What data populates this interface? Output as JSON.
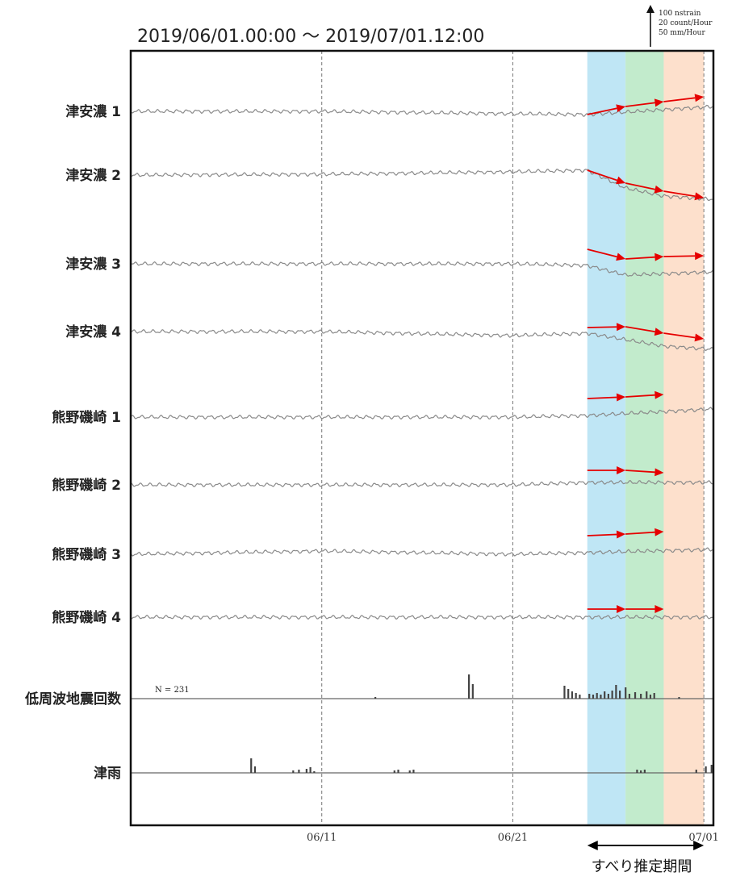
{
  "chart_data": {
    "type": "line",
    "title": "2019/06/01.00:00 ～ 2019/07/01.12:00",
    "x_range": [
      "2019-06-01 00:00",
      "2019-07-01 12:00"
    ],
    "x_tick_labels": [
      "06/11",
      "06/21",
      "07/01"
    ],
    "x_ticks_days": [
      10,
      20,
      30
    ],
    "x_range_days": [
      0,
      30.5
    ],
    "scale_legend": [
      "100 nstrain",
      "20 count/Hour",
      "50 mm/Hour"
    ],
    "count_annotation": "N =   231",
    "period_label": "すべり推定期間",
    "period_days": [
      23.9,
      30.0
    ],
    "shaded_periods": [
      {
        "start_day": 23.9,
        "end_day": 25.9,
        "color": "#bfe6f5"
      },
      {
        "start_day": 25.9,
        "end_day": 27.9,
        "color": "#c2ebcc"
      },
      {
        "start_day": 27.9,
        "end_day": 30.0,
        "color": "#fde0cc"
      }
    ],
    "series": [
      {
        "name": "津安濃 1",
        "kind": "strain",
        "trend_points": [
          [
            0,
            0
          ],
          [
            10,
            0
          ],
          [
            20,
            3
          ],
          [
            23.9,
            4
          ],
          [
            30.5,
            -6
          ]
        ],
        "arrows": [
          [
            [
              23.9,
              4
            ],
            [
              25.9,
              -6
            ]
          ],
          [
            [
              25.9,
              -6
            ],
            [
              27.9,
              -12
            ]
          ],
          [
            [
              27.9,
              -12
            ],
            [
              30,
              -18
            ]
          ]
        ]
      },
      {
        "name": "津安濃 2",
        "kind": "strain",
        "trend_points": [
          [
            0,
            0
          ],
          [
            10,
            -1
          ],
          [
            20,
            -4
          ],
          [
            23.9,
            -6
          ],
          [
            25.9,
            16
          ],
          [
            27.9,
            26
          ],
          [
            30.5,
            30
          ]
        ],
        "arrows": [
          [
            [
              23.9,
              -6
            ],
            [
              25.9,
              10
            ]
          ],
          [
            [
              25.9,
              10
            ],
            [
              27.9,
              20
            ]
          ],
          [
            [
              27.9,
              20
            ],
            [
              30,
              28
            ]
          ]
        ]
      },
      {
        "name": "津安濃 3",
        "kind": "strain",
        "trend_points": [
          [
            0,
            0
          ],
          [
            10,
            0
          ],
          [
            20,
            0
          ],
          [
            23.9,
            2
          ],
          [
            25.9,
            14
          ],
          [
            30.5,
            10
          ]
        ],
        "arrows": [
          [
            [
              23.9,
              -18
            ],
            [
              25.9,
              -6
            ]
          ],
          [
            [
              25.9,
              -6
            ],
            [
              27.9,
              -9
            ]
          ],
          [
            [
              27.9,
              -9
            ],
            [
              30,
              -10
            ]
          ]
        ]
      },
      {
        "name": "津安濃 4",
        "kind": "strain",
        "trend_points": [
          [
            0,
            0
          ],
          [
            10,
            0
          ],
          [
            20,
            5
          ],
          [
            23.9,
            2
          ],
          [
            25.9,
            10
          ],
          [
            27.9,
            18
          ],
          [
            30.5,
            22
          ]
        ],
        "arrows": [
          [
            [
              23.9,
              -5
            ],
            [
              25.9,
              -6
            ]
          ],
          [
            [
              25.9,
              -6
            ],
            [
              27.9,
              2
            ]
          ],
          [
            [
              27.9,
              2
            ],
            [
              30,
              9
            ]
          ]
        ]
      },
      {
        "name": "熊野磯崎 1",
        "kind": "strain",
        "trend_points": [
          [
            0,
            0
          ],
          [
            10,
            0
          ],
          [
            20,
            0
          ],
          [
            23.9,
            -2
          ],
          [
            30.5,
            -10
          ]
        ],
        "arrows": [
          [
            [
              23.9,
              -23
            ],
            [
              25.9,
              -25
            ]
          ],
          [
            [
              25.9,
              -25
            ],
            [
              27.9,
              -28
            ]
          ]
        ]
      },
      {
        "name": "熊野磯崎 2",
        "kind": "strain",
        "trend_points": [
          [
            0,
            0
          ],
          [
            10,
            0
          ],
          [
            20,
            0
          ],
          [
            23.9,
            -3
          ],
          [
            30.5,
            -3
          ]
        ],
        "arrows": [
          [
            [
              23.9,
              -18
            ],
            [
              25.9,
              -18
            ]
          ],
          [
            [
              25.9,
              -18
            ],
            [
              27.9,
              -15
            ]
          ]
        ]
      },
      {
        "name": "熊野磯崎 3",
        "kind": "strain",
        "trend_points": [
          [
            0,
            0
          ],
          [
            10,
            -4
          ],
          [
            20,
            0
          ],
          [
            23.9,
            -2
          ],
          [
            30.5,
            -6
          ]
        ],
        "arrows": [
          [
            [
              23.9,
              -23
            ],
            [
              25.9,
              -25
            ]
          ],
          [
            [
              25.9,
              -25
            ],
            [
              27.9,
              -28
            ]
          ]
        ]
      },
      {
        "name": "熊野磯崎 4",
        "kind": "strain",
        "trend_points": [
          [
            0,
            0
          ],
          [
            10,
            0
          ],
          [
            20,
            0
          ],
          [
            23.9,
            0
          ],
          [
            30.5,
            0
          ]
        ],
        "arrows": [
          [
            [
              23.9,
              -10
            ],
            [
              25.9,
              -10
            ]
          ],
          [
            [
              25.9,
              -10
            ],
            [
              27.9,
              -10
            ]
          ]
        ]
      },
      {
        "name": "低周波地震回数",
        "kind": "count",
        "bars": [
          [
            12.8,
            2
          ],
          [
            17.7,
            30
          ],
          [
            17.9,
            18
          ],
          [
            22.7,
            16
          ],
          [
            22.9,
            12
          ],
          [
            23.1,
            9
          ],
          [
            23.3,
            7
          ],
          [
            23.5,
            5
          ],
          [
            24.0,
            6
          ],
          [
            24.2,
            5
          ],
          [
            24.4,
            7
          ],
          [
            24.6,
            5
          ],
          [
            24.8,
            9
          ],
          [
            25.0,
            6
          ],
          [
            25.2,
            10
          ],
          [
            25.4,
            17
          ],
          [
            25.6,
            10
          ],
          [
            25.9,
            14
          ],
          [
            26.1,
            6
          ],
          [
            26.4,
            8
          ],
          [
            26.7,
            6
          ],
          [
            27.0,
            9
          ],
          [
            27.2,
            5
          ],
          [
            27.4,
            7
          ],
          [
            28.7,
            2
          ]
        ]
      },
      {
        "name": "津雨",
        "kind": "rain",
        "bars": [
          [
            6.3,
            18
          ],
          [
            6.5,
            8
          ],
          [
            8.5,
            3
          ],
          [
            8.8,
            4
          ],
          [
            9.2,
            5
          ],
          [
            9.4,
            7
          ],
          [
            9.6,
            2
          ],
          [
            13.8,
            3
          ],
          [
            14.0,
            4
          ],
          [
            14.6,
            3
          ],
          [
            14.8,
            4
          ],
          [
            26.5,
            4
          ],
          [
            26.7,
            3
          ],
          [
            26.9,
            4
          ],
          [
            29.6,
            4
          ],
          [
            30.1,
            8
          ],
          [
            30.4,
            10
          ]
        ]
      }
    ]
  }
}
